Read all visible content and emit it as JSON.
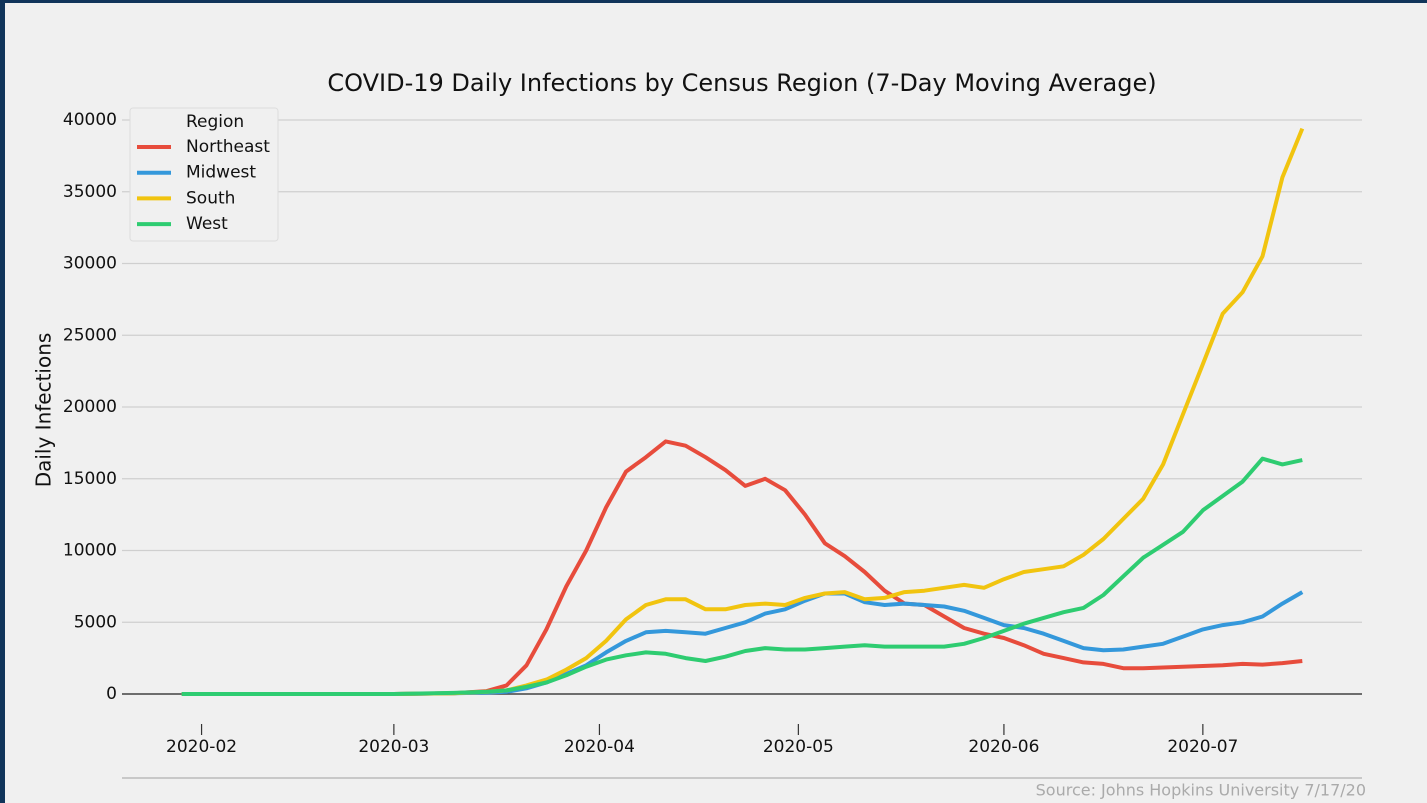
{
  "chart_data": {
    "type": "line",
    "title": "COVID-19 Daily Infections by Census Region (7-Day Moving Average)",
    "ylabel": "Daily Infections",
    "source": "Source: Johns Hopkins University 7/17/20",
    "legend_title": "Region",
    "legend": "upper left",
    "grid": true,
    "x": [
      "2020-01-29",
      "2020-02-15",
      "2020-03-01",
      "2020-03-10",
      "2020-03-15",
      "2020-03-18",
      "2020-03-21",
      "2020-03-24",
      "2020-03-27",
      "2020-03-30",
      "2020-04-02",
      "2020-04-05",
      "2020-04-08",
      "2020-04-11",
      "2020-04-14",
      "2020-04-17",
      "2020-04-20",
      "2020-04-23",
      "2020-04-26",
      "2020-04-29",
      "2020-05-02",
      "2020-05-05",
      "2020-05-08",
      "2020-05-11",
      "2020-05-14",
      "2020-05-17",
      "2020-05-20",
      "2020-05-23",
      "2020-05-26",
      "2020-05-29",
      "2020-06-01",
      "2020-06-04",
      "2020-06-07",
      "2020-06-10",
      "2020-06-13",
      "2020-06-16",
      "2020-06-19",
      "2020-06-22",
      "2020-06-25",
      "2020-06-28",
      "2020-07-01",
      "2020-07-04",
      "2020-07-07",
      "2020-07-10",
      "2020-07-13",
      "2020-07-16"
    ],
    "xlim": [
      "2020-01-20",
      "2020-07-25"
    ],
    "xticks": [
      {
        "value": "2020-02-01",
        "label": "2020-02"
      },
      {
        "value": "2020-03-01",
        "label": "2020-03"
      },
      {
        "value": "2020-04-01",
        "label": "2020-04"
      },
      {
        "value": "2020-05-01",
        "label": "2020-05"
      },
      {
        "value": "2020-06-01",
        "label": "2020-06"
      },
      {
        "value": "2020-07-01",
        "label": "2020-07"
      }
    ],
    "ylim": [
      0,
      40000
    ],
    "yticks": [
      0,
      5000,
      10000,
      15000,
      20000,
      25000,
      30000,
      35000,
      40000
    ],
    "series": [
      {
        "name": "Northeast",
        "color": "#e74c3c",
        "values": [
          0,
          0,
          0,
          50,
          200,
          600,
          2000,
          4500,
          7500,
          10000,
          13000,
          15500,
          16500,
          17600,
          17300,
          16500,
          15600,
          14500,
          15000,
          14200,
          12500,
          10500,
          9600,
          8500,
          7200,
          6300,
          6200,
          5400,
          4600,
          4200,
          3900,
          3400,
          2800,
          2500,
          2200,
          2100,
          1800,
          1800,
          1850,
          1900,
          1950,
          2000,
          2100,
          2050,
          2150,
          2300
        ]
      },
      {
        "name": "Midwest",
        "color": "#3498db",
        "values": [
          0,
          0,
          0,
          50,
          100,
          150,
          400,
          800,
          1400,
          2000,
          2900,
          3700,
          4300,
          4400,
          4300,
          4200,
          4600,
          5000,
          5600,
          5900,
          6500,
          7000,
          7000,
          6400,
          6200,
          6300,
          6200,
          6100,
          5800,
          5300,
          4800,
          4600,
          4200,
          3700,
          3200,
          3050,
          3100,
          3300,
          3500,
          4000,
          4500,
          4800,
          5000,
          5400,
          6300,
          7100
        ]
      },
      {
        "name": "South",
        "color": "#f1c40f",
        "values": [
          0,
          0,
          0,
          50,
          150,
          250,
          600,
          1000,
          1700,
          2500,
          3700,
          5200,
          6200,
          6600,
          6600,
          5900,
          5900,
          6200,
          6300,
          6200,
          6700,
          7000,
          7100,
          6600,
          6700,
          7100,
          7200,
          7400,
          7600,
          7400,
          8000,
          8500,
          8700,
          8900,
          9700,
          10800,
          12200,
          13600,
          16000,
          19500,
          23000,
          26500,
          28000,
          30500,
          36000,
          39400
        ]
      },
      {
        "name": "West",
        "color": "#2ecc71",
        "values": [
          0,
          0,
          0,
          80,
          150,
          250,
          500,
          800,
          1300,
          1900,
          2400,
          2700,
          2900,
          2800,
          2500,
          2300,
          2600,
          3000,
          3200,
          3100,
          3100,
          3200,
          3300,
          3400,
          3300,
          3300,
          3300,
          3300,
          3500,
          3900,
          4400,
          4900,
          5300,
          5700,
          6000,
          6900,
          8200,
          9500,
          10400,
          11300,
          12800,
          13800,
          14800,
          16400,
          16000,
          16300
        ]
      }
    ]
  }
}
